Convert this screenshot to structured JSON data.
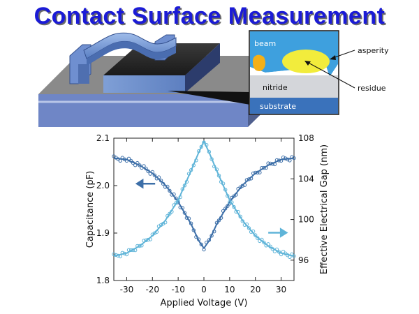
{
  "title": "Contact Surface Measurement",
  "diagram": {
    "inset_labels": {
      "beam": "beam",
      "nitride": "nitride",
      "substrate": "substrate",
      "asperity": "asperity",
      "residue": "residue"
    }
  },
  "chart_data": {
    "type": "scatter",
    "xlabel": "Applied Voltage (V)",
    "ylabel_left": "Capacitance (pF)",
    "ylabel_right": "Effective Electrical Gap (nm)",
    "xlim": [
      -35,
      35
    ],
    "ylim_left": [
      1.8,
      2.1
    ],
    "ylim_right": [
      94,
      108
    ],
    "x_ticks": [
      "-30",
      "-20",
      "-10",
      "0",
      "10",
      "20",
      "30"
    ],
    "y_left_ticks": [
      "1.8",
      "1.9",
      "2.0",
      "2.1"
    ],
    "y_right_ticks": [
      "96",
      "100",
      "104",
      "108"
    ],
    "series": [
      {
        "axis": "left",
        "color": "#3d6fa8",
        "x": [
          -35,
          -30,
          -25,
          -20,
          -15,
          -10,
          -5,
          -2,
          0,
          2,
          5,
          10,
          15,
          20,
          25,
          30,
          35
        ],
        "values": [
          2.058,
          2.055,
          2.043,
          2.026,
          2.001,
          1.966,
          1.919,
          1.884,
          1.868,
          1.884,
          1.919,
          1.966,
          2.001,
          2.026,
          2.043,
          2.055,
          2.058
        ]
      },
      {
        "axis": "right",
        "color": "#5fb4d8",
        "x": [
          -35,
          -30,
          -25,
          -20,
          -15,
          -10,
          -5,
          -2,
          0,
          2,
          5,
          10,
          15,
          20,
          25,
          30,
          35
        ],
        "values": [
          96.4,
          96.7,
          97.4,
          98.4,
          99.9,
          101.9,
          104.8,
          106.6,
          107.7,
          106.6,
          104.8,
          101.9,
          99.9,
          98.4,
          97.4,
          96.7,
          96.4
        ]
      }
    ],
    "arrows": [
      {
        "direction": "left",
        "axis": "left",
        "color": "#3d6fa8"
      },
      {
        "direction": "right",
        "axis": "right",
        "color": "#5fb4d8"
      }
    ]
  }
}
